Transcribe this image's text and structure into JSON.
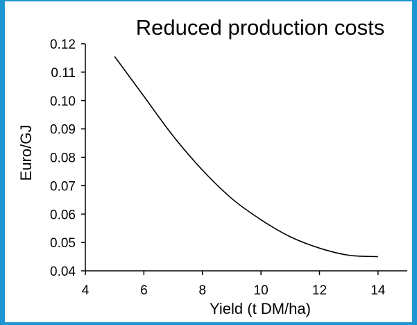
{
  "colors": {
    "frame": "#1e96d2",
    "curve": "#000000",
    "background": "#ffffff"
  },
  "chart_data": {
    "type": "line",
    "title": "Reduced production costs",
    "xlabel": "Yield (t DM/ha)",
    "ylabel": "Euro/GJ",
    "xlim": [
      4,
      15
    ],
    "ylim": [
      0.04,
      0.12
    ],
    "x_ticks": [
      "4",
      "6",
      "8",
      "10",
      "12",
      "14"
    ],
    "y_ticks": [
      "0.04",
      "0.05",
      "0.06",
      "0.07",
      "0.08",
      "0.09",
      "0.10",
      "0.11",
      "0.12"
    ],
    "grid": false,
    "series": [
      {
        "x": [
          5,
          6,
          7,
          8,
          9,
          10,
          11,
          12,
          13,
          14
        ],
        "y": [
          0.1155,
          0.1015,
          0.0875,
          0.0755,
          0.0655,
          0.058,
          0.052,
          0.048,
          0.0455,
          0.045
        ]
      }
    ]
  }
}
